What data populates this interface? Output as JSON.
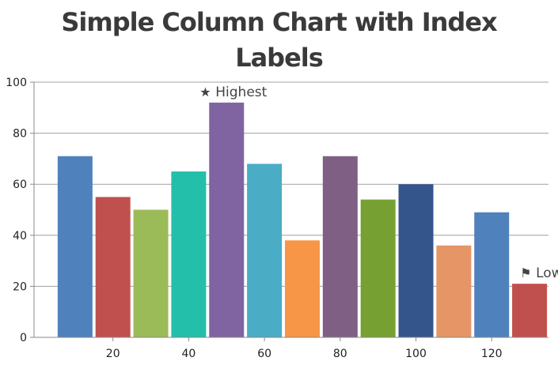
{
  "chart_data": {
    "type": "bar",
    "title_lines": [
      "Simple Column Chart with Index",
      "Labels"
    ],
    "x": [
      10,
      20,
      30,
      40,
      50,
      60,
      70,
      80,
      90,
      100,
      110,
      120,
      130
    ],
    "values": [
      71,
      55,
      50,
      65,
      92,
      68,
      38,
      71,
      54,
      60,
      36,
      49,
      21
    ],
    "colors": [
      "#4f81bc",
      "#c0504e",
      "#9bbb58",
      "#23bfaa",
      "#8064a1",
      "#4aacc5",
      "#f79647",
      "#7f6084",
      "#77a033",
      "#33558b",
      "#e59566",
      "#4f81bc",
      "#c0504e"
    ],
    "x_ticks": [
      20,
      40,
      60,
      80,
      100,
      120
    ],
    "y_ticks": [
      0,
      20,
      40,
      60,
      80,
      100
    ],
    "ylim": [
      0,
      100
    ],
    "grid": true,
    "index_labels": [
      {
        "x": 50,
        "icon": "star-icon",
        "glyph": "★",
        "text": "Highest",
        "position": "above"
      },
      {
        "x": 130,
        "icon": "flag-icon",
        "glyph": "⚑",
        "text": "Lowest",
        "position": "above"
      }
    ]
  }
}
